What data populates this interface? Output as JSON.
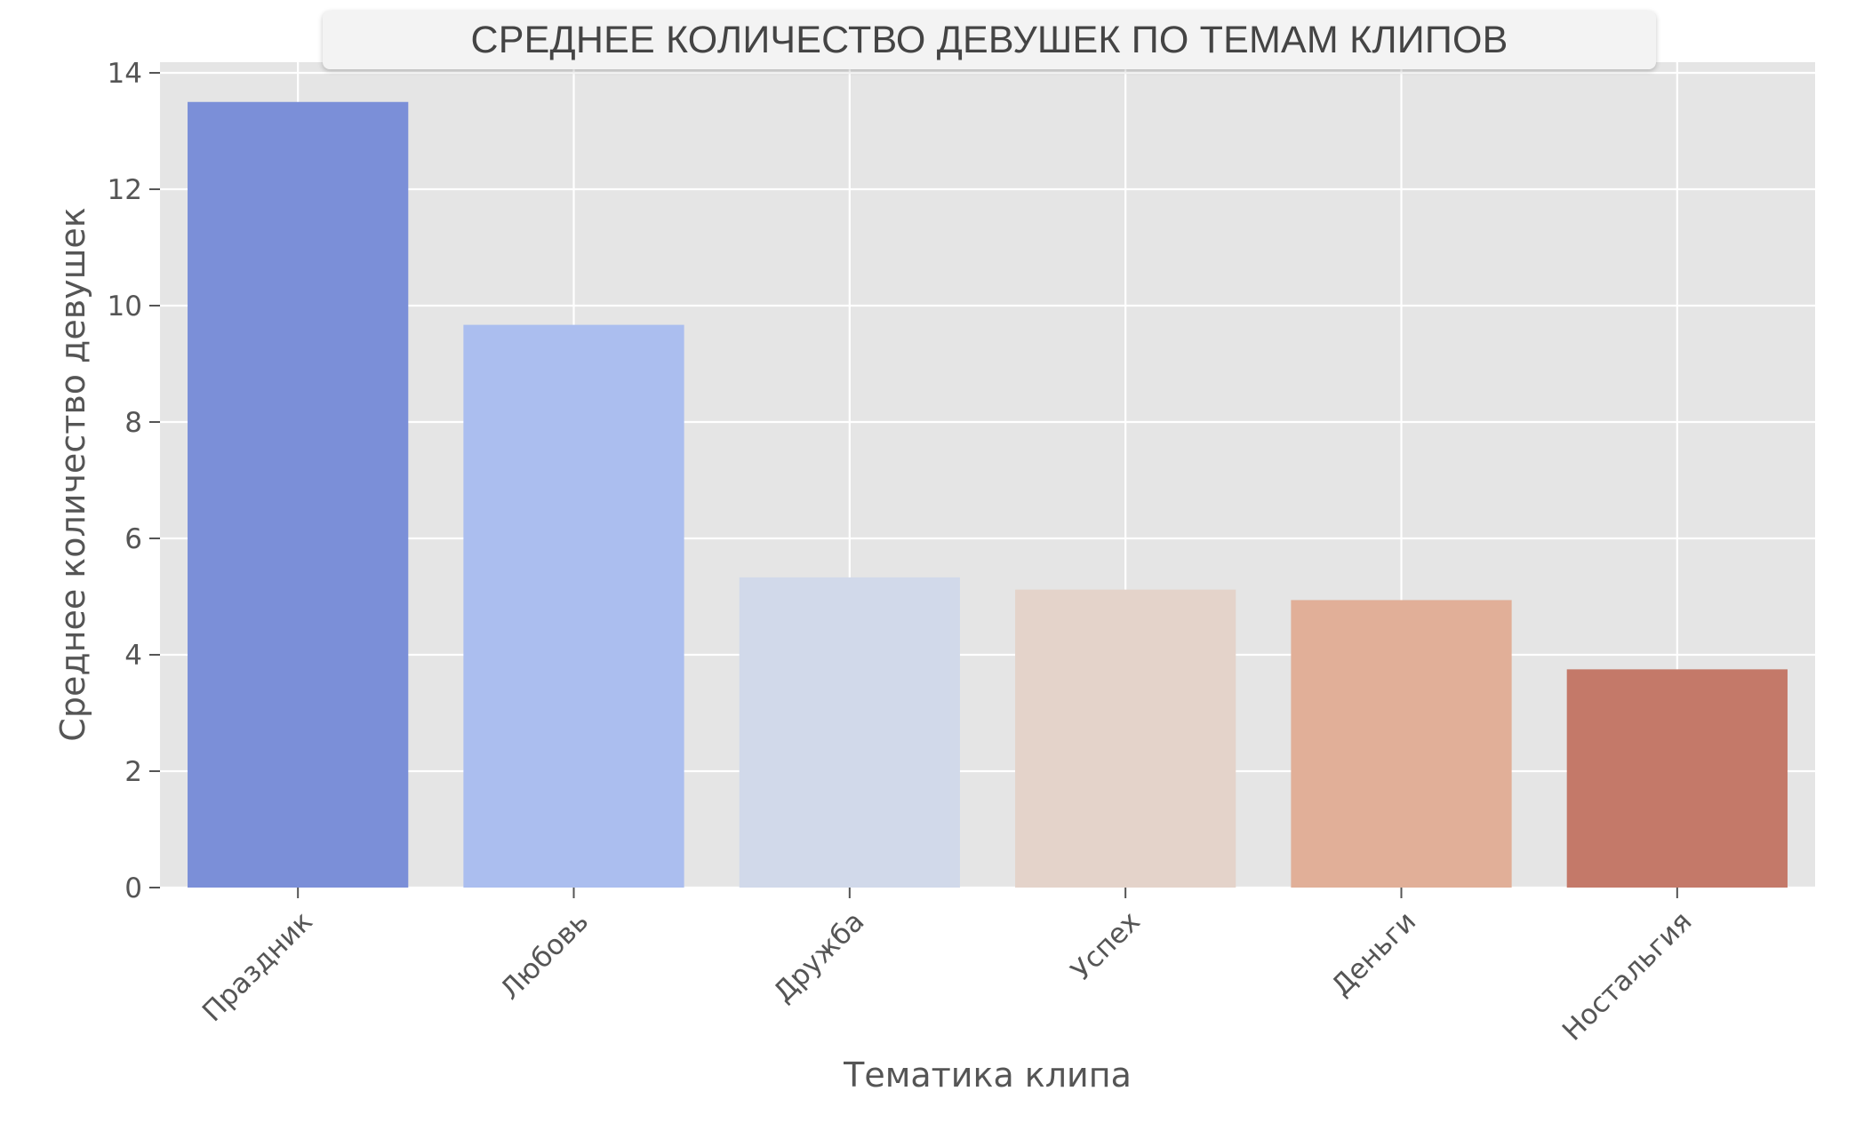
{
  "chart_data": {
    "type": "bar",
    "title": "СРЕДНЕЕ КОЛИЧЕСТВО ДЕВУШЕК ПО ТЕМАМ КЛИПОВ",
    "xlabel": "Тематика клипа",
    "ylabel": "Среднее количество девушек",
    "categories": [
      "Праздник",
      "Любовь",
      "Дружба",
      "Успех",
      "Деньги",
      "Ностальгия"
    ],
    "values": [
      13.5,
      9.67,
      5.33,
      5.12,
      4.94,
      3.75
    ],
    "colors": [
      "#7b8fd8",
      "#abbeef",
      "#d1d9ea",
      "#e4d3ca",
      "#e1af98",
      "#c47969"
    ],
    "ylim": [
      0,
      14
    ],
    "yticks": [
      "0",
      "2",
      "4",
      "6",
      "8",
      "10",
      "12",
      "14"
    ],
    "grid": true,
    "legend": "none",
    "background": "#e5e5e5"
  }
}
